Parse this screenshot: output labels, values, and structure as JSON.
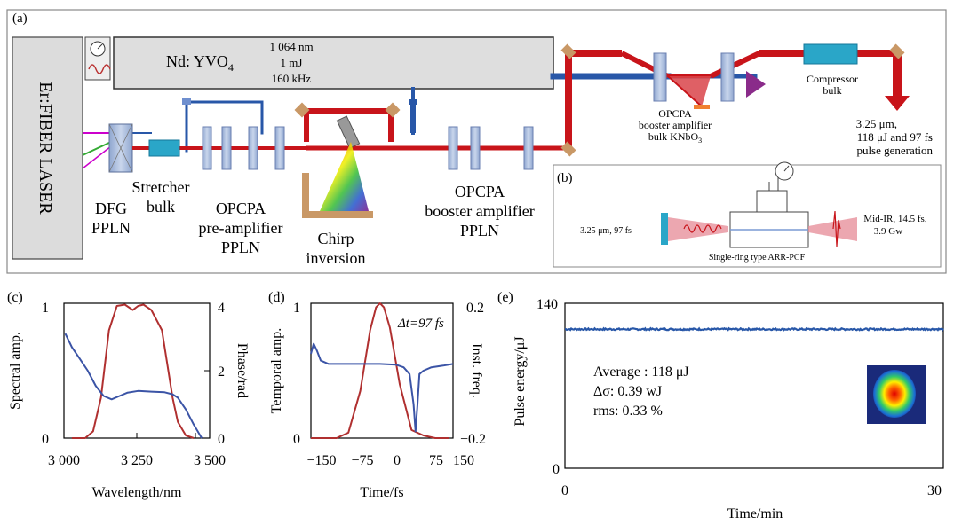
{
  "panel_a": {
    "label": "(a)",
    "laser": "Er:FIBER LASER",
    "pump": {
      "name": "Nd: YVO",
      "sub": "4",
      "specs": [
        "1 064 nm",
        "1 mJ",
        "160 kHz"
      ]
    },
    "labels": {
      "dfg": [
        "DFG",
        "PPLN"
      ],
      "stretcher": [
        "Stretcher",
        "bulk"
      ],
      "preamp": [
        "OPCPA",
        "pre-amplifier",
        "PPLN"
      ],
      "chirp": [
        "Chirp",
        "inversion"
      ],
      "booster": [
        "OPCPA",
        "booster amplifier",
        "PPLN"
      ],
      "booster_bulk_l1": "OPCPA",
      "booster_bulk_l2": "booster amplifier",
      "booster_bulk_l3": "bulk KNbO",
      "booster_bulk_sub": "3",
      "compressor": [
        "Compressor",
        "bulk"
      ],
      "output": [
        "3.25 μm,",
        "118 μJ and 97 fs",
        "pulse generation"
      ]
    }
  },
  "panel_b": {
    "label": "(b)",
    "input": "3.25 μm, 97 fs",
    "fiber": "Single-ring type ARR-PCF",
    "output": [
      "Mid-IR, 14.5 fs,",
      "3.9 Gw"
    ]
  },
  "panel_c": {
    "label": "(c)",
    "ylabel_left": "Spectral amp.",
    "ylabel_right": "Phase/rad",
    "xlabel": "Wavelength/nm",
    "xticks": [
      "3 000",
      "3 250",
      "3 500"
    ],
    "yticks_left": [
      "0",
      "1"
    ],
    "yticks_right": [
      "0",
      "2",
      "4"
    ]
  },
  "panel_d": {
    "label": "(d)",
    "ylabel_left": "Temporal amp.",
    "ylabel_right": "Inst. freq.",
    "xlabel": "Time/fs",
    "annotation": "Δt=97 fs",
    "xticks": [
      "−150",
      "−75",
      "0",
      "75",
      "150"
    ],
    "yticks_left": [
      "0",
      "1"
    ],
    "yticks_right": [
      "−0.2",
      "0.2"
    ]
  },
  "panel_e": {
    "label": "(e)",
    "ylabel": "Pulse energy/μJ",
    "xlabel": "Time/min",
    "xticks": [
      "0",
      "30"
    ],
    "yticks": [
      "0",
      "140"
    ],
    "stats": [
      "Average : 118 μJ",
      "Δσ: 0.39 wJ",
      "rms: 0.33 %"
    ]
  },
  "colors": {
    "red_beam": "#c8141a",
    "blue_beam": "#2857a8",
    "curve_red": "#b03030",
    "curve_blue": "#3b54a6",
    "frame": "#888888"
  },
  "chart_data": [
    {
      "type": "line",
      "title": "",
      "xlabel": "Wavelength/nm",
      "ylabel": "Spectral amp.",
      "y2label": "Phase/rad",
      "xlim": [
        2970,
        3520
      ],
      "ylim": [
        0,
        1
      ],
      "y2lim": [
        0,
        4
      ],
      "series": [
        {
          "axis": "left",
          "color": "#b03030",
          "x": [
            3000,
            3050,
            3080,
            3110,
            3140,
            3170,
            3200,
            3230,
            3250,
            3270,
            3300,
            3340,
            3380,
            3400,
            3430,
            3460
          ],
          "y": [
            0,
            0,
            0.05,
            0.3,
            0.8,
            0.98,
            0.99,
            0.95,
            0.98,
            0.99,
            0.95,
            0.8,
            0.3,
            0.12,
            0.02,
            0
          ]
        },
        {
          "axis": "right",
          "color": "#3b54a6",
          "x": [
            2975,
            3000,
            3030,
            3060,
            3090,
            3120,
            3150,
            3180,
            3210,
            3250,
            3300,
            3350,
            3380,
            3400,
            3430,
            3460,
            3490
          ],
          "y": [
            3.1,
            2.7,
            2.35,
            2.0,
            1.55,
            1.25,
            1.15,
            1.25,
            1.35,
            1.4,
            1.38,
            1.36,
            1.3,
            1.2,
            0.85,
            0.4,
            0
          ]
        }
      ]
    },
    {
      "type": "line",
      "title": "",
      "xlabel": "Time/fs",
      "ylabel": "Temporal amp.",
      "y2label": "Inst. freq.",
      "xlim": [
        -175,
        185
      ],
      "ylim": [
        0,
        1
      ],
      "y2lim": [
        -0.2,
        0.2
      ],
      "series": [
        {
          "axis": "left",
          "color": "#b03030",
          "x": [
            -175,
            -140,
            -110,
            -80,
            -50,
            -25,
            -10,
            0,
            10,
            25,
            50,
            80,
            110,
            140,
            175
          ],
          "y": [
            0,
            0,
            0,
            0.04,
            0.35,
            0.8,
            0.97,
            1.0,
            0.97,
            0.82,
            0.4,
            0.06,
            0.02,
            0,
            0
          ]
        },
        {
          "axis": "right",
          "color": "#3b54a6",
          "x": [
            -175,
            -168,
            -160,
            -150,
            -130,
            -100,
            -50,
            0,
            40,
            60,
            75,
            85,
            90,
            95,
            100,
            110,
            130,
            160,
            185
          ],
          "y": [
            0.05,
            0.08,
            0.06,
            0.03,
            0.02,
            0.02,
            0.02,
            0.02,
            0.018,
            0.01,
            -0.01,
            -0.1,
            -0.18,
            -0.1,
            -0.01,
            0.0,
            0.01,
            0.015,
            0.02
          ]
        }
      ]
    },
    {
      "type": "line",
      "title": "",
      "xlabel": "Time/min",
      "ylabel": "Pulse energy/μJ",
      "xlim": [
        0,
        30
      ],
      "ylim": [
        0,
        140
      ],
      "series": [
        {
          "color": "#2857a8",
          "x": [
            0,
            5,
            10,
            15,
            20,
            25,
            30
          ],
          "y": [
            118,
            118,
            118,
            118,
            118,
            118,
            118
          ]
        }
      ]
    }
  ]
}
